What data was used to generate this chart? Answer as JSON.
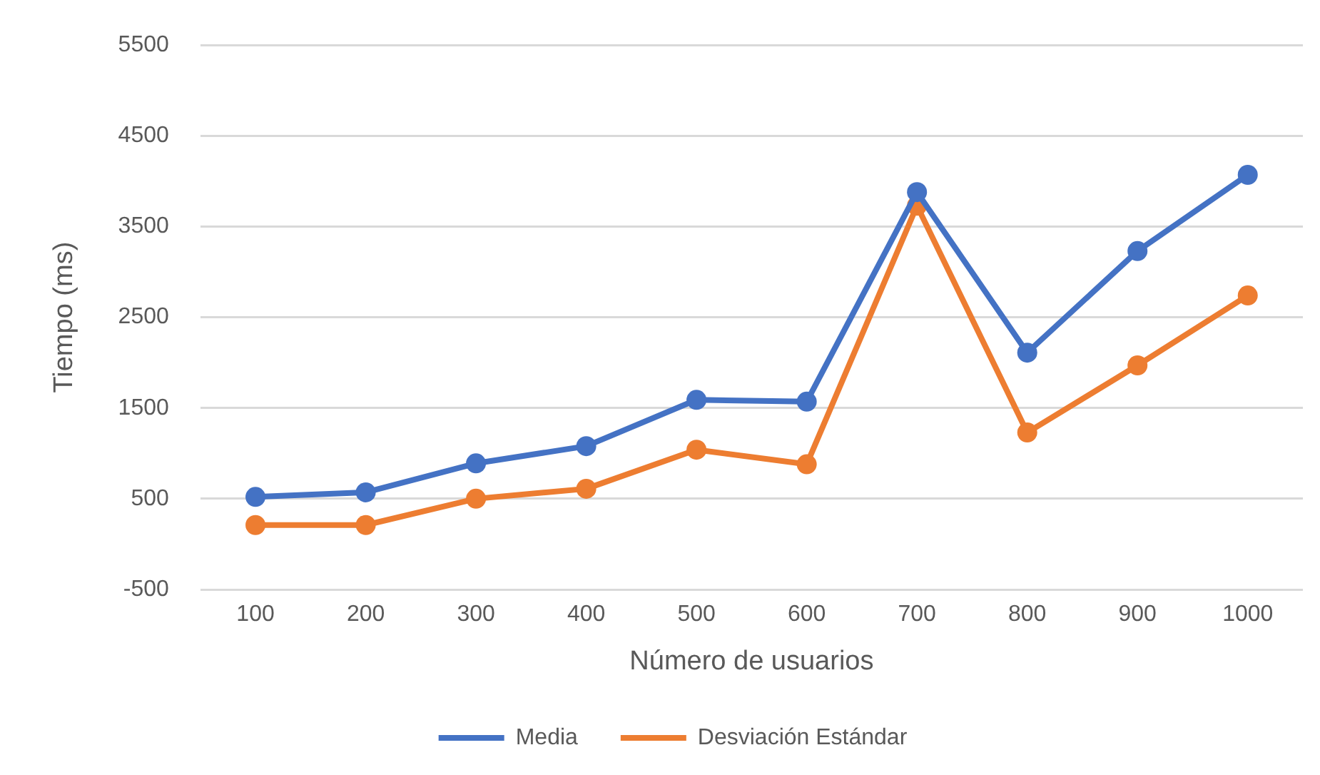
{
  "chart_data": {
    "type": "line",
    "xlabel": "Número de usuarios",
    "ylabel": "Tiempo (ms)",
    "categories": [
      "100",
      "200",
      "300",
      "400",
      "500",
      "600",
      "700",
      "800",
      "900",
      "1000"
    ],
    "series": [
      {
        "name": "Media",
        "color": "#4472c4",
        "values": [
          520,
          570,
          890,
          1080,
          1590,
          1570,
          3880,
          2110,
          3230,
          4070
        ]
      },
      {
        "name": "Desviación Estándar",
        "color": "#ed7d31",
        "values": [
          210,
          210,
          500,
          610,
          1040,
          880,
          3730,
          1230,
          1970,
          2740
        ]
      }
    ],
    "ylim": [
      -500,
      5500
    ],
    "yticks": [
      -500,
      500,
      1500,
      2500,
      3500,
      4500,
      5500
    ],
    "grid": "y",
    "legend": "bottom",
    "marker": "circle",
    "line_style": "solid"
  }
}
